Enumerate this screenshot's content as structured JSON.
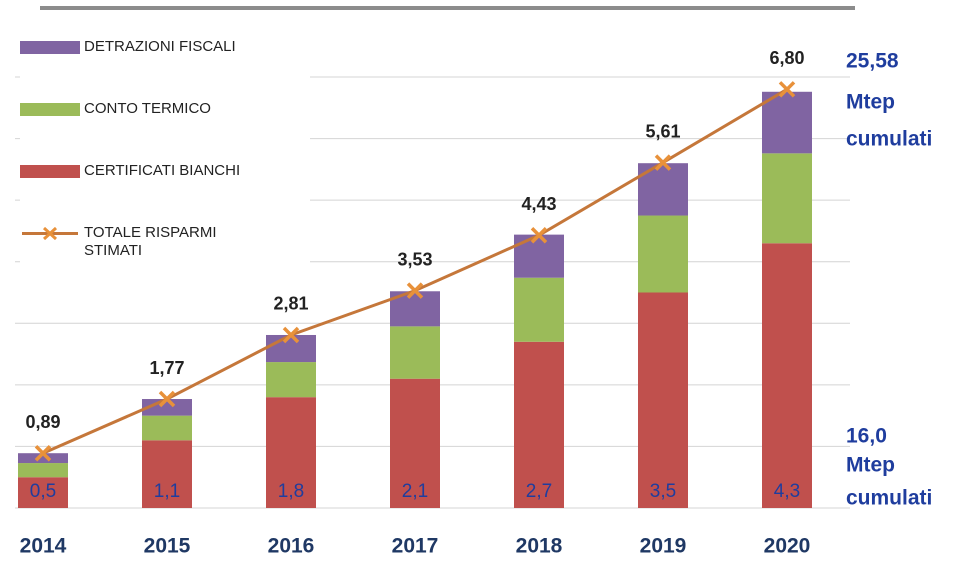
{
  "chart_data": {
    "type": "bar",
    "stacked": true,
    "categories": [
      "2014",
      "2015",
      "2016",
      "2017",
      "2018",
      "2019",
      "2020"
    ],
    "series": [
      {
        "name": "CERTIFICATI BIANCHI",
        "type": "bar",
        "color": "#c0504d",
        "values": [
          0.5,
          1.1,
          1.8,
          2.1,
          2.7,
          3.5,
          4.3
        ],
        "value_labels": [
          "0,5",
          "1,1",
          "1,8",
          "2,1",
          "2,7",
          "3,5",
          "4,3"
        ]
      },
      {
        "name": "CONTO TERMICO",
        "type": "bar",
        "color": "#9bbb59",
        "values": [
          0.23,
          0.4,
          0.57,
          0.85,
          1.04,
          1.25,
          1.46
        ]
      },
      {
        "name": "DETRAZIONI FISCALI",
        "type": "bar",
        "color": "#8064a2",
        "values": [
          0.16,
          0.27,
          0.44,
          0.57,
          0.7,
          0.85,
          1.0
        ]
      },
      {
        "name": "TOTALE RISPARMI STIMATI",
        "type": "line",
        "color": "#c5773a",
        "values": [
          0.89,
          1.77,
          2.81,
          3.53,
          4.43,
          5.61,
          6.8
        ],
        "value_labels": [
          "0,89",
          "1,77",
          "2,81",
          "3,53",
          "4,43",
          "5,61",
          "6,80"
        ]
      }
    ],
    "annotations": [
      [
        "25,58",
        "Mtep",
        "cumulati"
      ],
      [
        "16,0",
        "Mtep",
        "cumulati"
      ]
    ],
    "ylim": [
      0,
      7
    ],
    "yticks": [
      0,
      1,
      2,
      3,
      4,
      5,
      6,
      7
    ],
    "grid": true
  }
}
